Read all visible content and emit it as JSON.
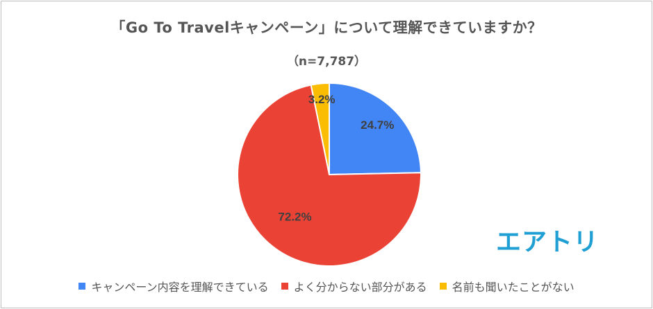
{
  "chart_data": {
    "type": "pie",
    "title": "「Go To Travelキャンペーン」について理解できていますか？",
    "subtitle": "（n=7,787）",
    "slices": [
      {
        "label": "キャンペーン内容を理解できている",
        "value": 24.7,
        "data_label": "24.7%",
        "color": "#4285f4"
      },
      {
        "label": "よく分からない部分がある",
        "value": 72.2,
        "data_label": "72.2%",
        "color": "#ea4335"
      },
      {
        "label": "名前も聞いたことがない",
        "value": 3.2,
        "data_label": "3.2%",
        "color": "#fbbc04"
      }
    ],
    "legend_position": "bottom"
  },
  "brand": {
    "logo_text": "エアトリ",
    "color": "#1f9fd3"
  }
}
